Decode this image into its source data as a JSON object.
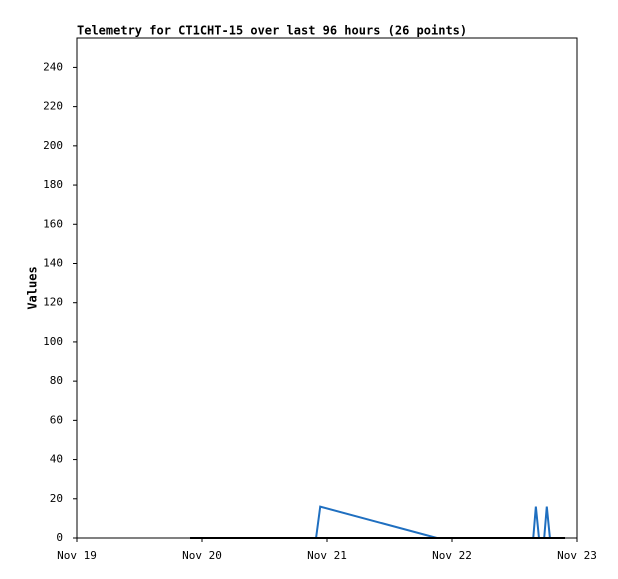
{
  "chart_data": {
    "type": "line",
    "title": "Telemetry for CT1CHT-15 over last 96 hours (26 points)",
    "ylabel": "Values",
    "xlim": [
      "Nov 19",
      "Nov 23"
    ],
    "xticks": [
      "Nov 19",
      "Nov 20",
      "Nov 21",
      "Nov 22",
      "Nov 23"
    ],
    "ylim": [
      0,
      255
    ],
    "yticks": [
      0,
      20,
      40,
      60,
      80,
      100,
      120,
      140,
      160,
      180,
      200,
      220,
      240
    ],
    "grid": false,
    "series": [
      {
        "color": "#1f6fc0",
        "x": [
          "Nov 20 21:54",
          "Nov 20 22:42",
          "Nov 21 21:06",
          "Nov 22 15:36",
          "Nov 22 16:06",
          "Nov 22 16:42",
          "Nov 22 17:42",
          "Nov 22 18:12",
          "Nov 22 18:48"
        ],
        "values": [
          0,
          16,
          0,
          0,
          16,
          0,
          0,
          16,
          0
        ]
      },
      {
        "color": "#000000",
        "x": [
          "Nov 19 21:42",
          "Nov 20 02:12",
          "Nov 20 06:42",
          "Nov 20 11:12",
          "Nov 20 15:42",
          "Nov 20 20:12",
          "Nov 21 00:42",
          "Nov 21 05:12",
          "Nov 21 09:42",
          "Nov 21 14:12",
          "Nov 21 18:42",
          "Nov 21 23:12",
          "Nov 22 03:42",
          "Nov 22 08:12",
          "Nov 22 12:42",
          "Nov 22 17:12",
          "Nov 22 21:42"
        ],
        "values": [
          0,
          0,
          0,
          0,
          0,
          0,
          0,
          0,
          0,
          0,
          0,
          0,
          0,
          0,
          0,
          0,
          0
        ]
      }
    ]
  }
}
